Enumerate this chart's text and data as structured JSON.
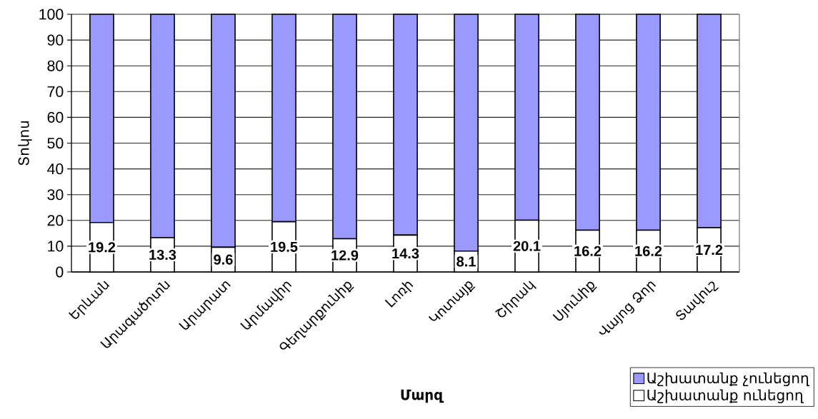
{
  "chart_data": {
    "type": "bar",
    "stacked": true,
    "categories": [
      "Երևան",
      "Արագածոտն",
      "Արարատ",
      "Արմավիր",
      "Գեղարքունիք",
      "Լոռի",
      "Կոտայք",
      "Շիրակ",
      "Սյունիք",
      "Վայոց Ձոր",
      "Տավուշ"
    ],
    "series": [
      {
        "name": "Աշխատանք ունեցող",
        "color": "#ffffff",
        "values": [
          19.2,
          13.3,
          9.6,
          19.5,
          12.9,
          14.3,
          8.1,
          20.1,
          16.2,
          16.2,
          17.2
        ],
        "value_labels": [
          "19.2",
          "13.3",
          "9.6",
          "19.5",
          "12.9",
          "14.3",
          "8.1",
          "20.1",
          "16.2",
          "16.2",
          "17.2"
        ]
      },
      {
        "name": "Աշխատանք չունեցող",
        "color": "#9999ff",
        "values": [
          80.8,
          86.7,
          90.4,
          80.5,
          87.1,
          85.7,
          91.9,
          79.9,
          83.8,
          83.8,
          82.8
        ]
      }
    ],
    "xlabel": "Մարզ",
    "ylabel": "Տոկոս",
    "ylim": [
      0,
      100
    ],
    "yticks": [
      0,
      10,
      20,
      30,
      40,
      50,
      60,
      70,
      80,
      90,
      100
    ],
    "grid": "y",
    "legend": "bottom right"
  }
}
